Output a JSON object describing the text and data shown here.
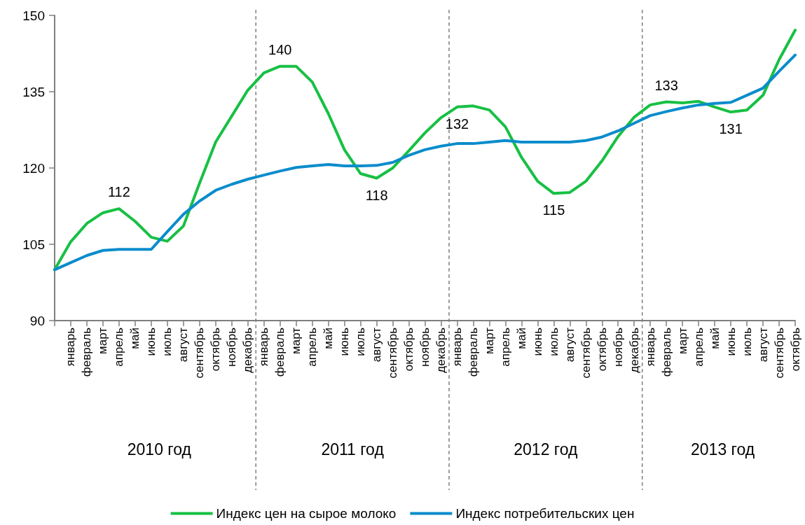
{
  "chart_data": {
    "type": "line",
    "categories": [
      null,
      "январь",
      "февраль",
      "март",
      "апрель",
      "май",
      "июнь",
      "июль",
      "август",
      "сентябрь",
      "октябрь",
      "ноябрь",
      "декабрь",
      "январь",
      "февраль",
      "март",
      "апрель",
      "май",
      "июнь",
      "июль",
      "август",
      "сентябрь",
      "октябрь",
      "ноябрь",
      "декабрь",
      "январь",
      "февраль",
      "март",
      "апрель",
      "май",
      "июнь",
      "июль",
      "август",
      "сентябрь",
      "октябрь",
      "ноябрь",
      "декабрь",
      "январь",
      "февраль",
      "март",
      "апрель",
      "май",
      "июнь",
      "июль",
      "август",
      "сентябрь",
      "октябрь"
    ],
    "series": [
      {
        "name": "Индекс цен на сырое молоко",
        "color": "#17c043",
        "values": [
          100,
          105.5,
          109.1,
          111.2,
          112,
          109.5,
          106.4,
          105.6,
          108.6,
          117,
          125.1,
          130.2,
          135.3,
          138.7,
          140,
          140,
          136.9,
          130.7,
          123.6,
          118.9,
          118,
          120,
          123.4,
          126.9,
          129.9,
          132,
          132.2,
          131.4,
          128.1,
          122.1,
          117.4,
          115,
          115.2,
          117.4,
          121.4,
          126.2,
          130,
          132.4,
          133,
          132.8,
          133.1,
          132,
          131,
          131.4,
          134.3,
          141.3,
          147.1
        ],
        "value_labels": [
          null,
          null,
          null,
          null,
          "112",
          null,
          null,
          null,
          null,
          null,
          null,
          null,
          null,
          null,
          "140",
          null,
          null,
          null,
          null,
          null,
          "118",
          null,
          null,
          null,
          null,
          "132",
          null,
          null,
          null,
          null,
          null,
          "115",
          null,
          null,
          null,
          null,
          null,
          null,
          "133",
          null,
          null,
          null,
          "131",
          null,
          null,
          null,
          null
        ]
      },
      {
        "name": "Индекс потребительских цен",
        "color": "#0a8ccc",
        "values": [
          100,
          101.4,
          102.8,
          103.8,
          104,
          104,
          104,
          107.5,
          110.9,
          113.5,
          115.6,
          116.8,
          117.8,
          118.6,
          119.4,
          120.1,
          120.4,
          120.7,
          120.4,
          120.4,
          120.5,
          121.1,
          122.5,
          123.6,
          124.3,
          124.8,
          124.8,
          125.1,
          125.4,
          125.1,
          125.1,
          125.1,
          125.1,
          125.4,
          126.1,
          127.3,
          128.8,
          130.3,
          131.1,
          131.8,
          132.4,
          132.7,
          132.9,
          134.3,
          135.7,
          139,
          142.2
        ]
      }
    ],
    "ylim": [
      90,
      150
    ],
    "yticks": [
      90,
      105,
      120,
      135,
      150
    ],
    "annotations": [
      "2010 год",
      "2011 год",
      "2012 год",
      "2013 год"
    ],
    "grid": false,
    "legend": "bottom",
    "marker": "none",
    "line_style": "solid"
  }
}
